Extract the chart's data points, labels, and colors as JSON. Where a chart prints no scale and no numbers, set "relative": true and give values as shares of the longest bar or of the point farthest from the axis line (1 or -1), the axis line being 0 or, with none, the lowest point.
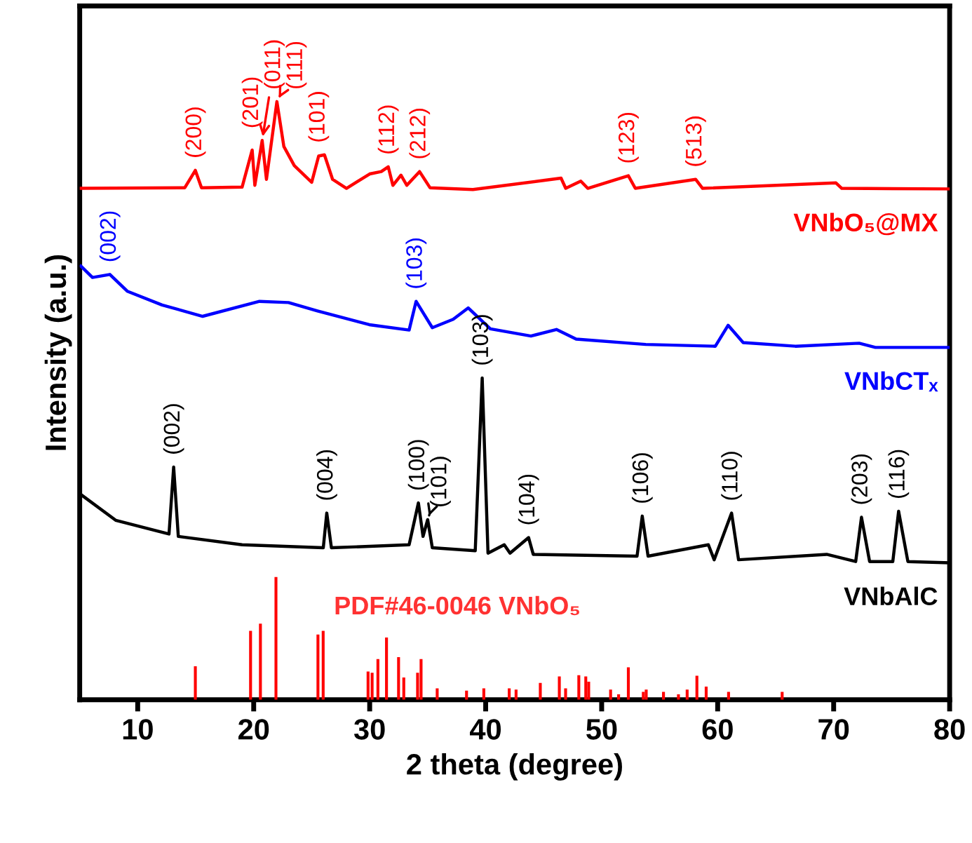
{
  "chart_data": {
    "type": "line",
    "relative": true,
    "xlim": [
      5,
      80
    ],
    "xticks": [
      10,
      20,
      30,
      40,
      50,
      60,
      70,
      80
    ],
    "xlabel": "2 theta (degree)",
    "ylabel": "Intensity (a.u.)",
    "series": [
      {
        "name": "VNbO₅@MX",
        "color": "#ff0000",
        "x": [
          5.1,
          14.06,
          14.97,
          15.5,
          19.0,
          19.87,
          20.1,
          20.73,
          21.1,
          22.0,
          22.6,
          23.5,
          25.0,
          25.6,
          26.1,
          26.8,
          28.0,
          30.0,
          31.0,
          31.6,
          32.0,
          32.7,
          33.2,
          34.3,
          35.2,
          38.9,
          46.5,
          46.9,
          48.2,
          48.8,
          52.3,
          52.9,
          58.1,
          58.7,
          70.2,
          70.7,
          79.9
        ],
        "values": [
          0.855,
          0.856,
          0.885,
          0.856,
          0.857,
          0.919,
          0.86,
          0.935,
          0.87,
          1.0,
          0.925,
          0.893,
          0.865,
          0.909,
          0.911,
          0.87,
          0.855,
          0.879,
          0.883,
          0.891,
          0.86,
          0.877,
          0.86,
          0.883,
          0.856,
          0.853,
          0.872,
          0.855,
          0.867,
          0.855,
          0.876,
          0.855,
          0.87,
          0.855,
          0.864,
          0.855,
          0.854
        ]
      },
      {
        "name": "VNbCTₓ",
        "color": "#0000ff",
        "x": [
          5.1,
          6.1,
          7.6,
          9.1,
          12.1,
          15.6,
          20.5,
          23.0,
          25.5,
          29.97,
          33.4,
          34.0,
          35.4,
          37.2,
          38.5,
          40.4,
          43.9,
          46.1,
          47.8,
          53.8,
          59.8,
          60.9,
          62.2,
          66.7,
          72.2,
          73.6,
          79.9
        ],
        "values": [
          0.725,
          0.706,
          0.711,
          0.683,
          0.66,
          0.641,
          0.666,
          0.664,
          0.65,
          0.627,
          0.618,
          0.666,
          0.622,
          0.636,
          0.655,
          0.62,
          0.608,
          0.619,
          0.603,
          0.594,
          0.591,
          0.626,
          0.597,
          0.591,
          0.596,
          0.589,
          0.589
        ]
      },
      {
        "name": "VNbAlC",
        "color": "#000000",
        "x": [
          5.1,
          8.1,
          12.1,
          12.7,
          13.1,
          13.5,
          19.0,
          26.0,
          26.3,
          26.7,
          33.4,
          34.2,
          34.6,
          35.0,
          35.4,
          39.1,
          39.7,
          40.2,
          41.6,
          42.1,
          43.7,
          44.1,
          53.05,
          53.5,
          54.0,
          59.2,
          59.7,
          61.2,
          61.8,
          69.4,
          71.9,
          72.4,
          73.1,
          75.1,
          75.6,
          76.4,
          79.9
        ],
        "values": [
          0.343,
          0.3,
          0.28,
          0.277,
          0.389,
          0.273,
          0.259,
          0.254,
          0.312,
          0.254,
          0.259,
          0.329,
          0.273,
          0.301,
          0.254,
          0.249,
          0.538,
          0.245,
          0.259,
          0.245,
          0.271,
          0.243,
          0.24,
          0.307,
          0.24,
          0.259,
          0.234,
          0.312,
          0.234,
          0.243,
          0.231,
          0.305,
          0.231,
          0.231,
          0.315,
          0.231,
          0.229
        ]
      },
      {
        "name": "PDF#46-0046 VNbO₅",
        "color": "#ff0000",
        "type": "bar",
        "x": [
          14.97,
          19.73,
          20.58,
          21.92,
          25.54,
          25.99,
          29.86,
          30.21,
          30.71,
          31.45,
          32.49,
          32.94,
          34.13,
          34.43,
          35.82,
          38.35,
          39.84,
          42.03,
          42.62,
          44.71,
          46.35,
          46.89,
          48.03,
          48.63,
          48.88,
          50.77,
          51.46,
          52.3,
          53.59,
          53.84,
          55.33,
          56.62,
          57.37,
          58.21,
          59.01,
          60.94,
          65.56
        ],
        "values": [
          0.056,
          0.115,
          0.127,
          0.205,
          0.109,
          0.115,
          0.047,
          0.045,
          0.068,
          0.104,
          0.071,
          0.037,
          0.045,
          0.068,
          0.019,
          0.015,
          0.019,
          0.019,
          0.017,
          0.028,
          0.039,
          0.019,
          0.041,
          0.039,
          0.03,
          0.017,
          0.009,
          0.054,
          0.013,
          0.017,
          0.013,
          0.009,
          0.017,
          0.04,
          0.022,
          0.013,
          0.013
        ]
      }
    ],
    "annotations": [
      {
        "text": "(200)",
        "x": 14.97,
        "y": 0.885
      },
      {
        "text": "(201)",
        "x": 19.87,
        "y": 0.919
      },
      {
        "text": "(011)",
        "x": 20.73,
        "y": 0.935
      },
      {
        "text": "(111)",
        "x": 22.0,
        "y": 1.0
      },
      {
        "text": "(101)",
        "x": 25.6,
        "y": 0.909
      },
      {
        "text": "(112)",
        "x": 31.6,
        "y": 0.891
      },
      {
        "text": "(212)",
        "x": 34.3,
        "y": 0.883
      },
      {
        "text": "(123)",
        "x": 52.3,
        "y": 0.876
      },
      {
        "text": "(513)",
        "x": 58.1,
        "y": 0.87
      },
      {
        "text": "(002)",
        "x": 7.6,
        "y": 0.711
      },
      {
        "text": "(103)",
        "x": 34.0,
        "y": 0.666
      },
      {
        "text": "(002)",
        "x": 13.1,
        "y": 0.389
      },
      {
        "text": "(004)",
        "x": 26.3,
        "y": 0.312
      },
      {
        "text": "(100)",
        "x": 34.2,
        "y": 0.329
      },
      {
        "text": "(101)",
        "x": 35.0,
        "y": 0.301
      },
      {
        "text": "(103)",
        "x": 39.7,
        "y": 0.538
      },
      {
        "text": "(104)",
        "x": 43.7,
        "y": 0.271
      },
      {
        "text": "(106)",
        "x": 53.5,
        "y": 0.307
      },
      {
        "text": "(110)",
        "x": 61.2,
        "y": 0.312
      },
      {
        "text": "(203)",
        "x": 72.4,
        "y": 0.305
      },
      {
        "text": "(116)",
        "x": 75.6,
        "y": 0.315
      }
    ]
  }
}
